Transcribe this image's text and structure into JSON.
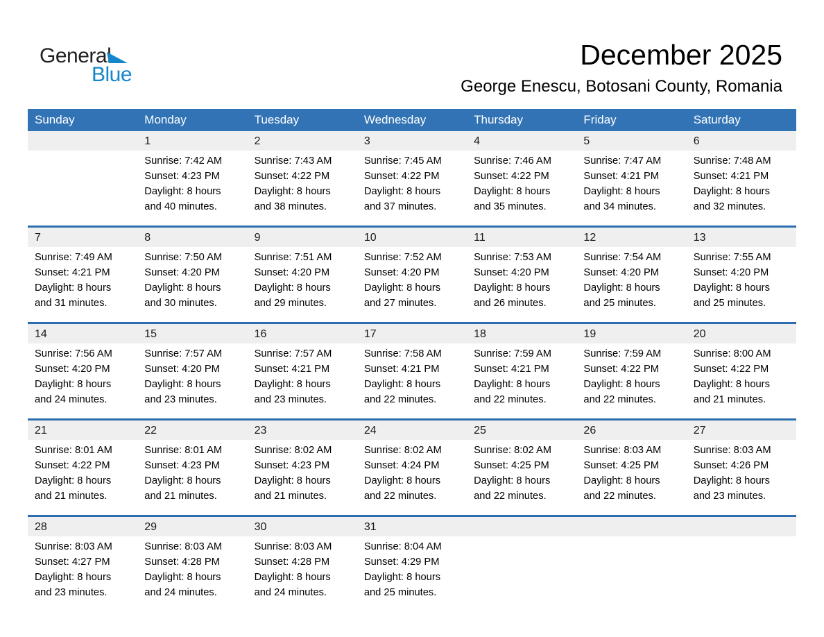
{
  "logo": {
    "general": "General",
    "blue": "Blue"
  },
  "header": {
    "month_title": "December 2025",
    "location": "George Enescu, Botosani County, Romania"
  },
  "colors": {
    "header_bg": "#3273b5",
    "separator_line": "#2c6dae",
    "day_band_bg": "#efefef",
    "logo_blue": "#1487cb",
    "logo_black": "#231f20",
    "weekday_text": "#ffffff"
  },
  "calendar": {
    "weekday_headers": [
      "Sunday",
      "Monday",
      "Tuesday",
      "Wednesday",
      "Thursday",
      "Friday",
      "Saturday"
    ],
    "labels": {
      "sunrise": "Sunrise:",
      "sunset": "Sunset:",
      "daylight": "Daylight:"
    },
    "weeks": [
      {
        "days": [
          null,
          {
            "day": "1",
            "sunrise": "7:42 AM",
            "sunset": "4:23 PM",
            "daylight": "8 hours and 40 minutes."
          },
          {
            "day": "2",
            "sunrise": "7:43 AM",
            "sunset": "4:22 PM",
            "daylight": "8 hours and 38 minutes."
          },
          {
            "day": "3",
            "sunrise": "7:45 AM",
            "sunset": "4:22 PM",
            "daylight": "8 hours and 37 minutes."
          },
          {
            "day": "4",
            "sunrise": "7:46 AM",
            "sunset": "4:22 PM",
            "daylight": "8 hours and 35 minutes."
          },
          {
            "day": "5",
            "sunrise": "7:47 AM",
            "sunset": "4:21 PM",
            "daylight": "8 hours and 34 minutes."
          },
          {
            "day": "6",
            "sunrise": "7:48 AM",
            "sunset": "4:21 PM",
            "daylight": "8 hours and 32 minutes."
          }
        ]
      },
      {
        "days": [
          {
            "day": "7",
            "sunrise": "7:49 AM",
            "sunset": "4:21 PM",
            "daylight": "8 hours and 31 minutes."
          },
          {
            "day": "8",
            "sunrise": "7:50 AM",
            "sunset": "4:20 PM",
            "daylight": "8 hours and 30 minutes."
          },
          {
            "day": "9",
            "sunrise": "7:51 AM",
            "sunset": "4:20 PM",
            "daylight": "8 hours and 29 minutes."
          },
          {
            "day": "10",
            "sunrise": "7:52 AM",
            "sunset": "4:20 PM",
            "daylight": "8 hours and 27 minutes."
          },
          {
            "day": "11",
            "sunrise": "7:53 AM",
            "sunset": "4:20 PM",
            "daylight": "8 hours and 26 minutes."
          },
          {
            "day": "12",
            "sunrise": "7:54 AM",
            "sunset": "4:20 PM",
            "daylight": "8 hours and 25 minutes."
          },
          {
            "day": "13",
            "sunrise": "7:55 AM",
            "sunset": "4:20 PM",
            "daylight": "8 hours and 25 minutes."
          }
        ]
      },
      {
        "days": [
          {
            "day": "14",
            "sunrise": "7:56 AM",
            "sunset": "4:20 PM",
            "daylight": "8 hours and 24 minutes."
          },
          {
            "day": "15",
            "sunrise": "7:57 AM",
            "sunset": "4:20 PM",
            "daylight": "8 hours and 23 minutes."
          },
          {
            "day": "16",
            "sunrise": "7:57 AM",
            "sunset": "4:21 PM",
            "daylight": "8 hours and 23 minutes."
          },
          {
            "day": "17",
            "sunrise": "7:58 AM",
            "sunset": "4:21 PM",
            "daylight": "8 hours and 22 minutes."
          },
          {
            "day": "18",
            "sunrise": "7:59 AM",
            "sunset": "4:21 PM",
            "daylight": "8 hours and 22 minutes."
          },
          {
            "day": "19",
            "sunrise": "7:59 AM",
            "sunset": "4:22 PM",
            "daylight": "8 hours and 22 minutes."
          },
          {
            "day": "20",
            "sunrise": "8:00 AM",
            "sunset": "4:22 PM",
            "daylight": "8 hours and 21 minutes."
          }
        ]
      },
      {
        "days": [
          {
            "day": "21",
            "sunrise": "8:01 AM",
            "sunset": "4:22 PM",
            "daylight": "8 hours and 21 minutes."
          },
          {
            "day": "22",
            "sunrise": "8:01 AM",
            "sunset": "4:23 PM",
            "daylight": "8 hours and 21 minutes."
          },
          {
            "day": "23",
            "sunrise": "8:02 AM",
            "sunset": "4:23 PM",
            "daylight": "8 hours and 21 minutes."
          },
          {
            "day": "24",
            "sunrise": "8:02 AM",
            "sunset": "4:24 PM",
            "daylight": "8 hours and 22 minutes."
          },
          {
            "day": "25",
            "sunrise": "8:02 AM",
            "sunset": "4:25 PM",
            "daylight": "8 hours and 22 minutes."
          },
          {
            "day": "26",
            "sunrise": "8:03 AM",
            "sunset": "4:25 PM",
            "daylight": "8 hours and 22 minutes."
          },
          {
            "day": "27",
            "sunrise": "8:03 AM",
            "sunset": "4:26 PM",
            "daylight": "8 hours and 23 minutes."
          }
        ]
      },
      {
        "days": [
          {
            "day": "28",
            "sunrise": "8:03 AM",
            "sunset": "4:27 PM",
            "daylight": "8 hours and 23 minutes."
          },
          {
            "day": "29",
            "sunrise": "8:03 AM",
            "sunset": "4:28 PM",
            "daylight": "8 hours and 24 minutes."
          },
          {
            "day": "30",
            "sunrise": "8:03 AM",
            "sunset": "4:28 PM",
            "daylight": "8 hours and 24 minutes."
          },
          {
            "day": "31",
            "sunrise": "8:04 AM",
            "sunset": "4:29 PM",
            "daylight": "8 hours and 25 minutes."
          },
          null,
          null,
          null
        ]
      }
    ]
  }
}
